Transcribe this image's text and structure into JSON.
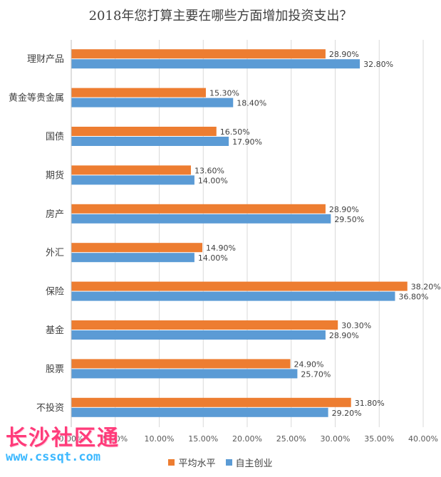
{
  "chart_data": {
    "type": "bar",
    "orientation": "horizontal",
    "title": "2018年您打算主要在哪些方面增加投资支出？",
    "categories": [
      "理财产品",
      "黄金等贵金属",
      "国债",
      "期货",
      "房产",
      "外汇",
      "保险",
      "基金",
      "股票",
      "不投资"
    ],
    "series": [
      {
        "name": "平均水平",
        "color": "#ED7D31",
        "values": [
          28.9,
          15.3,
          16.5,
          13.6,
          28.9,
          14.9,
          38.2,
          30.3,
          24.9,
          31.8
        ]
      },
      {
        "name": "自主创业",
        "color": "#5B9BD5",
        "values": [
          32.8,
          18.4,
          17.9,
          14.0,
          29.5,
          14.0,
          36.8,
          28.9,
          25.7,
          29.2
        ]
      }
    ],
    "xlim": [
      0,
      40
    ],
    "xticks": [
      0,
      5,
      10,
      15,
      20,
      25,
      30,
      35,
      40
    ],
    "tick_format": "percent_2dp",
    "grid": true,
    "legend_position": "bottom"
  },
  "watermark": {
    "text": "长沙社区通",
    "url": "www.cssqt.com"
  }
}
